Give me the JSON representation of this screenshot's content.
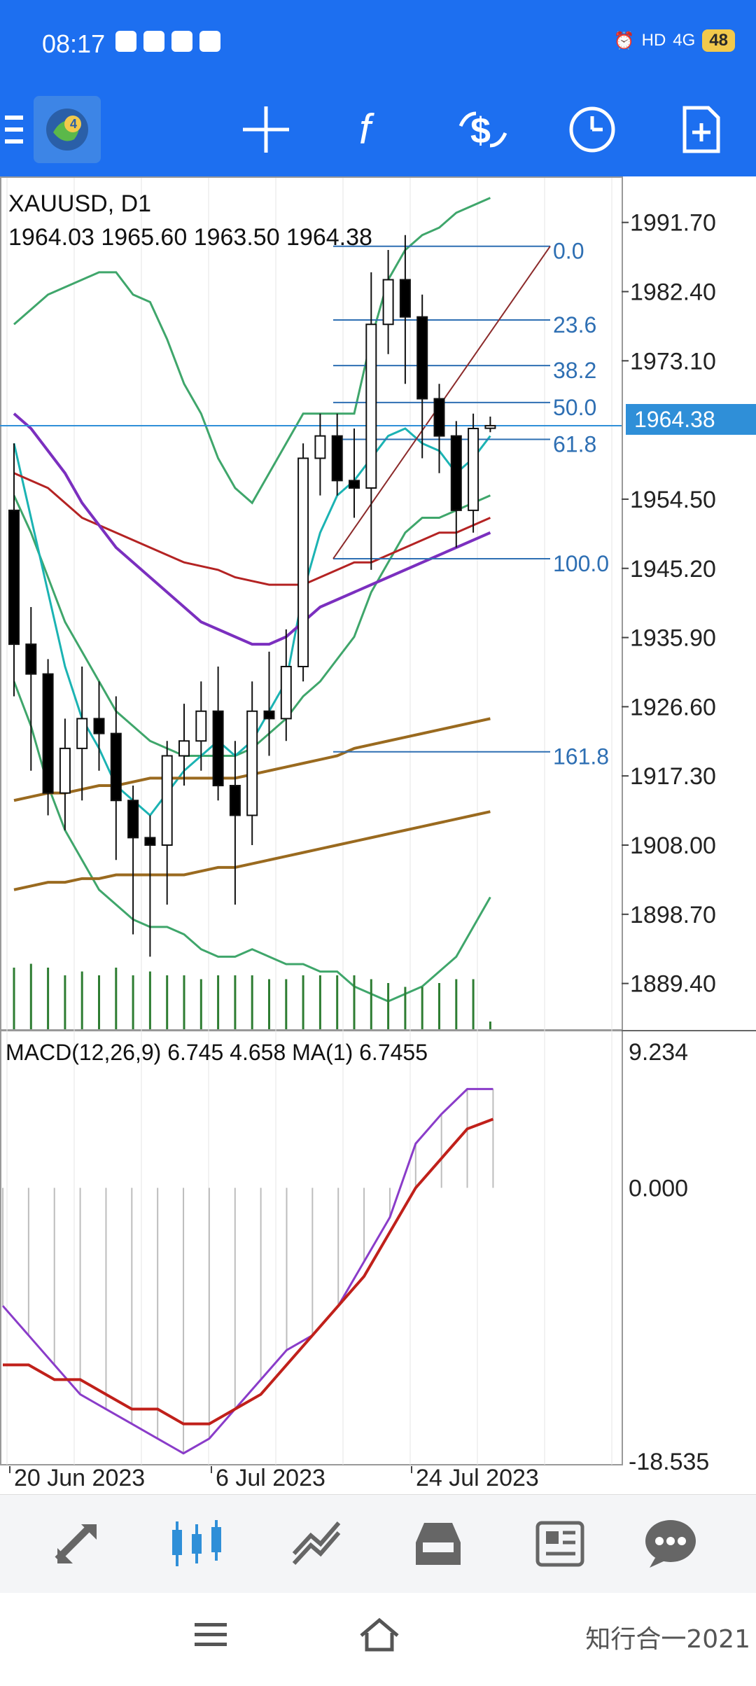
{
  "status_bar": {
    "time": "08:17",
    "battery": "48",
    "network": "4G",
    "hd": "HD"
  },
  "toolbar": {
    "items": [
      "menu",
      "mt4-logo",
      "crosshair",
      "indicators",
      "trade",
      "period",
      "new-order"
    ]
  },
  "chart": {
    "symbol_period": "XAUUSD, D1",
    "ohlc": "1964.03 1965.60 1963.50 1964.38",
    "current_price": "1964.38",
    "price_ticks": [
      "1991.70",
      "1982.40",
      "1973.10",
      "1964.38",
      "1954.50",
      "1945.20",
      "1935.90",
      "1926.60",
      "1917.30",
      "1908.00",
      "1898.70",
      "1889.40"
    ],
    "fib_levels": [
      "0.0",
      "23.6",
      "38.2",
      "50.0",
      "61.8",
      "100.0",
      "161.8"
    ],
    "date_labels": [
      "20 Jun 2023",
      "6 Jul 2023",
      "24 Jul 2023"
    ],
    "colors": {
      "up_body": "#ffffff",
      "down_body": "#000000",
      "bb": "#3fa66b",
      "ma_fast": "#1bb3b3",
      "ma_red": "#b42323",
      "ma_purple": "#7b2fbf",
      "ma_brown": "#9a6a1f",
      "fib": "#2e6fb3",
      "volume": "#2e7d32"
    }
  },
  "macd": {
    "label": "MACD(12,26,9) 6.745 4.658 MA(1) 6.7455",
    "ticks": [
      "9.234",
      "0.000",
      "-18.535"
    ]
  },
  "chart_data": {
    "type": "candlestick",
    "title": "XAUUSD, D1",
    "ylim": [
      1884,
      1996
    ],
    "ohlc_sample": [
      {
        "o": 1953,
        "h": 1962,
        "l": 1928,
        "c": 1935
      },
      {
        "o": 1935,
        "h": 1940,
        "l": 1918,
        "c": 1931
      },
      {
        "o": 1931,
        "h": 1933,
        "l": 1912,
        "c": 1915
      },
      {
        "o": 1915,
        "h": 1925,
        "l": 1910,
        "c": 1921
      },
      {
        "o": 1921,
        "h": 1932,
        "l": 1914,
        "c": 1925
      },
      {
        "o": 1925,
        "h": 1930,
        "l": 1918,
        "c": 1923
      },
      {
        "o": 1923,
        "h": 1928,
        "l": 1906,
        "c": 1914
      },
      {
        "o": 1914,
        "h": 1916,
        "l": 1896,
        "c": 1909
      },
      {
        "o": 1909,
        "h": 1912,
        "l": 1893,
        "c": 1908
      },
      {
        "o": 1908,
        "h": 1922,
        "l": 1900,
        "c": 1920
      },
      {
        "o": 1920,
        "h": 1927,
        "l": 1916,
        "c": 1922
      },
      {
        "o": 1922,
        "h": 1930,
        "l": 1918,
        "c": 1926
      },
      {
        "o": 1926,
        "h": 1932,
        "l": 1914,
        "c": 1916
      },
      {
        "o": 1916,
        "h": 1922,
        "l": 1900,
        "c": 1912
      },
      {
        "o": 1912,
        "h": 1930,
        "l": 1908,
        "c": 1926
      },
      {
        "o": 1926,
        "h": 1934,
        "l": 1920,
        "c": 1925
      },
      {
        "o": 1925,
        "h": 1937,
        "l": 1922,
        "c": 1932
      },
      {
        "o": 1932,
        "h": 1962,
        "l": 1930,
        "c": 1960
      },
      {
        "o": 1960,
        "h": 1966,
        "l": 1955,
        "c": 1963
      },
      {
        "o": 1963,
        "h": 1966,
        "l": 1955,
        "c": 1957
      },
      {
        "o": 1957,
        "h": 1964,
        "l": 1952,
        "c": 1956
      },
      {
        "o": 1956,
        "h": 1985,
        "l": 1945,
        "c": 1978
      },
      {
        "o": 1978,
        "h": 1988,
        "l": 1974,
        "c": 1984
      },
      {
        "o": 1984,
        "h": 1990,
        "l": 1970,
        "c": 1979
      },
      {
        "o": 1979,
        "h": 1982,
        "l": 1960,
        "c": 1968
      },
      {
        "o": 1968,
        "h": 1970,
        "l": 1958,
        "c": 1963
      },
      {
        "o": 1963,
        "h": 1965,
        "l": 1948,
        "c": 1953
      },
      {
        "o": 1953,
        "h": 1966,
        "l": 1950,
        "c": 1964
      },
      {
        "o": 1964.03,
        "h": 1965.6,
        "l": 1963.5,
        "c": 1964.38
      }
    ],
    "macd_main_sample": [
      -8,
      -10,
      -12,
      -14,
      -15,
      -16,
      -17,
      -18,
      -17,
      -15,
      -13,
      -11,
      -10,
      -8,
      -5,
      -2,
      3,
      5,
      6.7,
      6.7
    ],
    "macd_signal_sample": [
      -12,
      -12,
      -13,
      -13,
      -14,
      -15,
      -15,
      -16,
      -16,
      -15,
      -14,
      -12,
      -10,
      -8,
      -6,
      -3,
      0,
      2,
      4,
      4.658
    ]
  },
  "bottom_nav": {
    "items": [
      "quotes",
      "chart",
      "trade",
      "history",
      "news",
      "messages"
    ]
  },
  "system_nav": {
    "watermark": "知行合一2021"
  }
}
